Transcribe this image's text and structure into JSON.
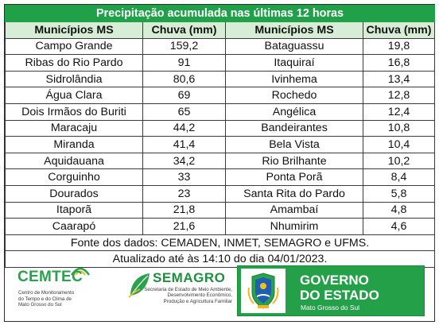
{
  "title": "Precipitação acumulada nas últimas 12 horas",
  "headers": [
    "Municípios MS",
    "Chuva (mm)",
    "Municípios MS",
    "Chuva (mm)"
  ],
  "rows": [
    [
      "Campo Grande",
      "159,2",
      "Bataguassu",
      "19,8"
    ],
    [
      "Ribas do Rio Pardo",
      "91",
      "Itaquiraí",
      "16,8"
    ],
    [
      "Sidrolândia",
      "80,6",
      "Ivinhema",
      "13,4"
    ],
    [
      "Água Clara",
      "69",
      "Rochedo",
      "12,8"
    ],
    [
      "Dois Irmãos do Buriti",
      "65",
      "Angélica",
      "12,4"
    ],
    [
      "Maracaju",
      "44,2",
      "Bandeirantes",
      "10,8"
    ],
    [
      "Miranda",
      "41,4",
      "Bela Vista",
      "10,4"
    ],
    [
      "Aquidauana",
      "34,2",
      "Rio Brilhante",
      "10,2"
    ],
    [
      "Corguinho",
      "33",
      "Ponta Porã",
      "8,4"
    ],
    [
      "Dourados",
      "23",
      "Santa Rita do Pardo",
      "5,8"
    ],
    [
      "Itaporã",
      "21,8",
      "Amambaí",
      "4,8"
    ],
    [
      "Caarapó",
      "21,6",
      "Nhumirim",
      "4,6"
    ]
  ],
  "source": "Fonte dos dados: CEMADEN, INMET, SEMAGRO e UFMS.",
  "updated": "Atualizado até às 14:10 do dia 04/01/2023.",
  "logos": {
    "cemtec": {
      "name": "CEMTEC",
      "subtitle": [
        "Centro de Monitoramento",
        "do Tempo e do Clima de",
        "Mato Grosso do Sul"
      ]
    },
    "semagro": {
      "name": "SEMAGRO",
      "subtitle": [
        "Secretaria de Estado de Meio Ambiente,",
        "Desenvolvimento Econômico,",
        "Produção e Agricultura Familiar"
      ]
    },
    "governo": {
      "line1": "GOVERNO",
      "line2": "DO ESTADO",
      "line3": "Mato Grosso do Sul"
    }
  },
  "colors": {
    "title_bar": "#21a04a",
    "header_row": "#d8edd5",
    "brand_green": "#24a049",
    "border": "#3a3a3a"
  }
}
